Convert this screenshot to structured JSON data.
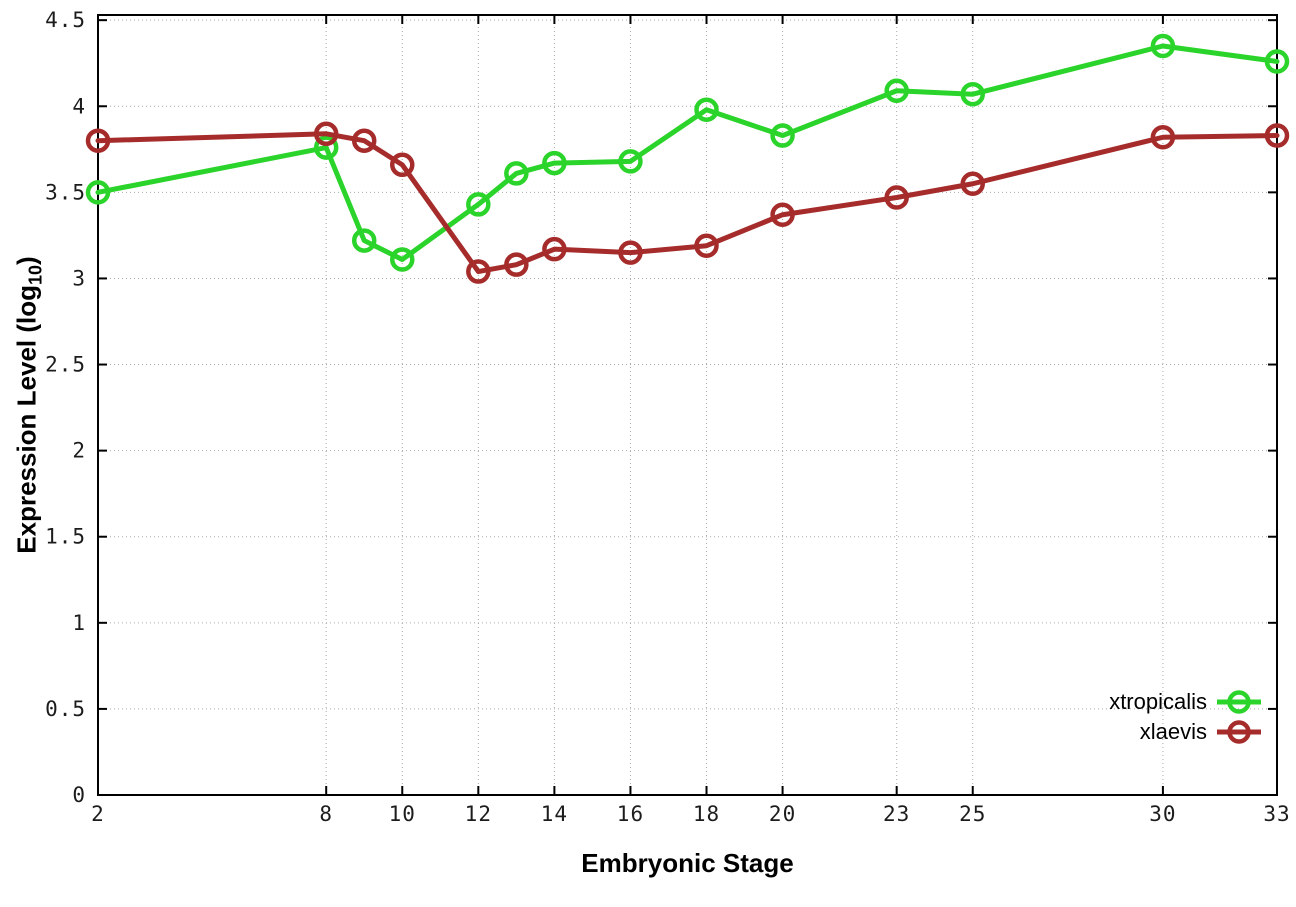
{
  "chart_data": {
    "type": "line",
    "title": "",
    "xlabel": "Embryonic Stage",
    "ylabel": "Expression Level (log10)",
    "ylabel_parts": {
      "main": "Expression Level (log",
      "sub": "10",
      "end": ")"
    },
    "x": [
      2,
      8,
      9,
      10,
      12,
      13,
      14,
      16,
      18,
      20,
      23,
      25,
      30,
      33
    ],
    "series": [
      {
        "name": "xtropicalis",
        "color": "#2bd42b",
        "marker": "open-circle",
        "values": [
          3.5,
          3.76,
          3.22,
          3.11,
          3.43,
          3.61,
          3.67,
          3.68,
          3.98,
          3.83,
          4.09,
          4.07,
          4.35,
          4.26
        ]
      },
      {
        "name": "xlaevis",
        "color": "#a62c2c",
        "marker": "open-circle",
        "values": [
          3.8,
          3.84,
          3.8,
          3.66,
          3.04,
          3.08,
          3.17,
          3.15,
          3.19,
          3.37,
          3.47,
          3.55,
          3.82,
          3.83
        ]
      }
    ],
    "xticks": [
      2,
      8,
      10,
      12,
      14,
      16,
      18,
      20,
      23,
      25,
      30,
      33
    ],
    "yticks": [
      0,
      0.5,
      1,
      1.5,
      2,
      2.5,
      3,
      3.5,
      4,
      4.5
    ],
    "xlim": [
      2,
      33
    ],
    "ylim": [
      0,
      4.5
    ],
    "grid": true,
    "grid_style": "dotted",
    "legend_position": "inside-bottom-right",
    "border_color": "#000000",
    "grid_color": "#aaaaaa"
  }
}
